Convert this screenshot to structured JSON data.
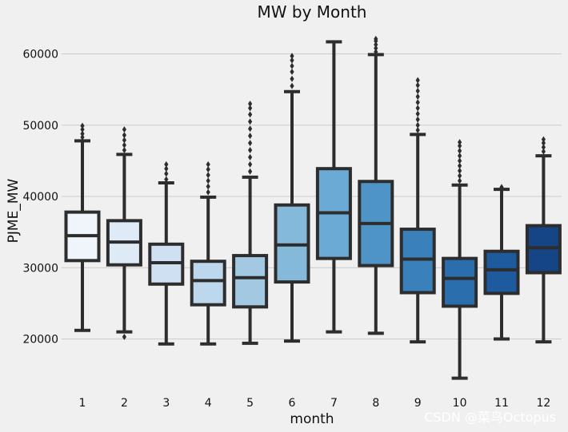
{
  "chart_data": {
    "type": "box",
    "title": "MW by Month",
    "xlabel": "month",
    "ylabel": "PJME_MW",
    "ylim": [
      12500,
      64000
    ],
    "yticks": [
      20000,
      30000,
      40000,
      50000,
      60000
    ],
    "ytick_labels": [
      "20000",
      "30000",
      "40000",
      "50000",
      "60000"
    ],
    "grid": true,
    "categories": [
      "1",
      "2",
      "3",
      "4",
      "5",
      "6",
      "7",
      "8",
      "9",
      "10",
      "11",
      "12"
    ],
    "boxes": [
      {
        "category": "1",
        "whisker_low": 21200,
        "q1": 31000,
        "median": 34500,
        "q3": 37800,
        "whisker_high": 47800,
        "outliers_high": [
          48300,
          48800,
          49400,
          49900
        ],
        "outliers_low": [],
        "color": "#f0f5fb"
      },
      {
        "category": "2",
        "whisker_low": 21000,
        "q1": 30400,
        "median": 33600,
        "q3": 36600,
        "whisker_high": 45900,
        "outliers_high": [
          46500,
          47200,
          47900,
          48600,
          49400
        ],
        "outliers_low": [
          20300
        ],
        "color": "#deebf7"
      },
      {
        "category": "3",
        "whisker_low": 19300,
        "q1": 27700,
        "median": 30700,
        "q3": 33300,
        "whisker_high": 41900,
        "outliers_high": [
          42400,
          43200,
          43900,
          44500
        ],
        "outliers_low": [],
        "color": "#cee0f1"
      },
      {
        "category": "4",
        "whisker_low": 19300,
        "q1": 24800,
        "median": 28200,
        "q3": 30900,
        "whisker_high": 39900,
        "outliers_high": [
          40600,
          41400,
          42200,
          43000,
          43800,
          44500
        ],
        "outliers_low": [],
        "color": "#bdd7ec"
      },
      {
        "category": "5",
        "whisker_low": 19400,
        "q1": 24500,
        "median": 28600,
        "q3": 31700,
        "whisker_high": 42700,
        "outliers_high": [
          43500,
          44500,
          45500,
          46500,
          47500,
          48500,
          49500,
          50500,
          51500,
          52400,
          53000
        ],
        "outliers_low": [],
        "color": "#a3c9e2"
      },
      {
        "category": "6",
        "whisker_low": 19700,
        "q1": 28000,
        "median": 33200,
        "q3": 38800,
        "whisker_high": 54700,
        "outliers_high": [
          55500,
          56500,
          57500,
          58300,
          59100,
          59700
        ],
        "outliers_low": [],
        "color": "#85b9da"
      },
      {
        "category": "7",
        "whisker_low": 21000,
        "q1": 31300,
        "median": 37700,
        "q3": 43900,
        "whisker_high": 61700,
        "outliers_high": [],
        "outliers_low": [],
        "color": "#6aaad4"
      },
      {
        "category": "8",
        "whisker_low": 20800,
        "q1": 30300,
        "median": 36200,
        "q3": 42100,
        "whisker_high": 59900,
        "outliers_high": [
          60300,
          60800,
          61300,
          61800,
          62100
        ],
        "outliers_low": [],
        "color": "#4e94c6"
      },
      {
        "category": "9",
        "whisker_low": 19600,
        "q1": 26500,
        "median": 31200,
        "q3": 35400,
        "whisker_high": 48700,
        "outliers_high": [
          49300,
          50000,
          50800,
          51600,
          52400,
          53200,
          54000,
          54800,
          55600,
          56300
        ],
        "outliers_low": [],
        "color": "#3a81bc"
      },
      {
        "category": "10",
        "whisker_low": 14500,
        "q1": 24600,
        "median": 28500,
        "q3": 31300,
        "whisker_high": 41600,
        "outliers_high": [
          42200,
          42900,
          43600,
          44300,
          45000,
          45700,
          46400,
          47100,
          47600
        ],
        "outliers_low": [],
        "color": "#2b6eae"
      },
      {
        "category": "11",
        "whisker_low": 20000,
        "q1": 26400,
        "median": 29700,
        "q3": 32300,
        "whisker_high": 41000,
        "outliers_high": [
          41300
        ],
        "outliers_low": [],
        "color": "#1e5b9e"
      },
      {
        "category": "12",
        "whisker_low": 19600,
        "q1": 29300,
        "median": 32800,
        "q3": 35900,
        "whisker_high": 45700,
        "outliers_high": [
          46300,
          46900,
          47500,
          48000
        ],
        "outliers_low": [],
        "color": "#154585"
      }
    ]
  },
  "watermark": "CSDN @菜鸟Octopus"
}
